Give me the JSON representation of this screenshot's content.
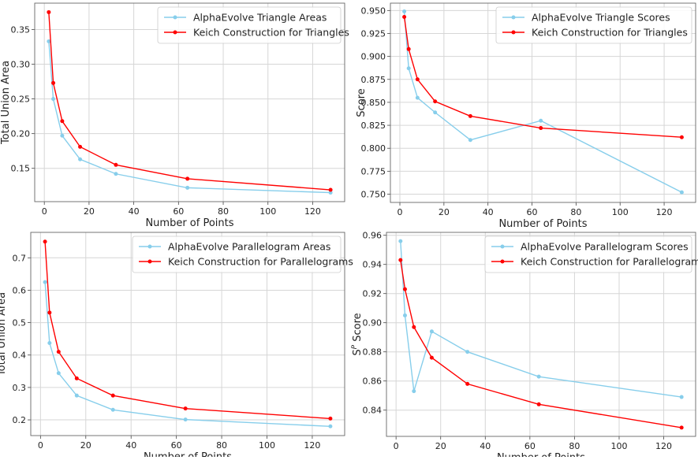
{
  "chart_data": [
    {
      "type": "line",
      "xlabel": "Number of Points",
      "ylabel": "Total Union Area",
      "xlim": [
        -4.3,
        134.3
      ],
      "ylim": [
        0.102,
        0.388
      ],
      "xticks": [
        0,
        20,
        40,
        60,
        80,
        100,
        120
      ],
      "yticks": [
        0.15,
        0.2,
        0.25,
        0.3,
        0.35
      ],
      "ytick_decimals": 2,
      "grid": true,
      "legend": "top-right",
      "x": [
        2,
        4,
        8,
        16,
        32,
        64,
        128
      ],
      "series": [
        {
          "name": "AlphaEvolve Triangle Areas",
          "color": "#87CEEB",
          "values": [
            0.333,
            0.25,
            0.197,
            0.163,
            0.142,
            0.122,
            0.115
          ]
        },
        {
          "name": "Keich Construction for Triangles",
          "color": "#FF0000",
          "values": [
            0.375,
            0.273,
            0.218,
            0.181,
            0.155,
            0.135,
            0.119
          ]
        }
      ]
    },
    {
      "type": "line",
      "xlabel": "Number of Points",
      "ylabel": "Score",
      "xlim": [
        -4.3,
        134.3
      ],
      "ylim": [
        0.741,
        0.958
      ],
      "xticks": [
        0,
        20,
        40,
        60,
        80,
        100,
        120
      ],
      "yticks": [
        0.75,
        0.775,
        0.8,
        0.825,
        0.85,
        0.875,
        0.9,
        0.925,
        0.95
      ],
      "ytick_decimals": 3,
      "grid": true,
      "legend": "top-right",
      "x": [
        2,
        4,
        8,
        16,
        32,
        64,
        128
      ],
      "series": [
        {
          "name": "AlphaEvolve Triangle Scores",
          "color": "#87CEEB",
          "values": [
            0.949,
            0.887,
            0.855,
            0.839,
            0.809,
            0.83,
            0.752
          ]
        },
        {
          "name": "Keich Construction for Triangles",
          "color": "#FF0000",
          "values": [
            0.943,
            0.908,
            0.875,
            0.851,
            0.835,
            0.822,
            0.812
          ]
        }
      ]
    },
    {
      "type": "line",
      "xlabel": "Number of Points",
      "ylabel": "Total Union Area",
      "xlim": [
        -4.3,
        134.3
      ],
      "ylim": [
        0.1515,
        0.7785
      ],
      "xticks": [
        0,
        20,
        40,
        60,
        80,
        100,
        120
      ],
      "yticks": [
        0.2,
        0.3,
        0.4,
        0.5,
        0.6,
        0.7
      ],
      "ytick_decimals": 1,
      "grid": true,
      "legend": "top-right",
      "x": [
        2,
        4,
        8,
        16,
        32,
        64,
        128
      ],
      "series": [
        {
          "name": "AlphaEvolve Parallelogram Areas",
          "color": "#87CEEB",
          "values": [
            0.625,
            0.437,
            0.344,
            0.275,
            0.231,
            0.201,
            0.18
          ]
        },
        {
          "name": "Keich Construction for Parallelograms",
          "color": "#FF0000",
          "values": [
            0.75,
            0.531,
            0.41,
            0.328,
            0.275,
            0.235,
            0.204
          ]
        }
      ]
    },
    {
      "type": "line",
      "xlabel": "Number of Points",
      "ylabel": "S^P Score",
      "xlim": [
        -4.3,
        134.3
      ],
      "ylim": [
        0.822,
        0.962
      ],
      "xticks": [
        0,
        20,
        40,
        60,
        80,
        100,
        120
      ],
      "yticks": [
        0.84,
        0.86,
        0.88,
        0.9,
        0.92,
        0.94,
        0.96
      ],
      "ytick_decimals": 2,
      "grid": true,
      "legend": "top-right",
      "x": [
        2,
        4,
        8,
        16,
        32,
        64,
        128
      ],
      "series": [
        {
          "name": "AlphaEvolve Parallelogram Scores",
          "color": "#87CEEB",
          "values": [
            0.956,
            0.905,
            0.853,
            0.894,
            0.88,
            0.863,
            0.849
          ]
        },
        {
          "name": "Keich Construction for Parallelograms",
          "color": "#FF0000",
          "values": [
            0.943,
            0.923,
            0.897,
            0.876,
            0.858,
            0.844,
            0.828
          ]
        }
      ]
    }
  ]
}
